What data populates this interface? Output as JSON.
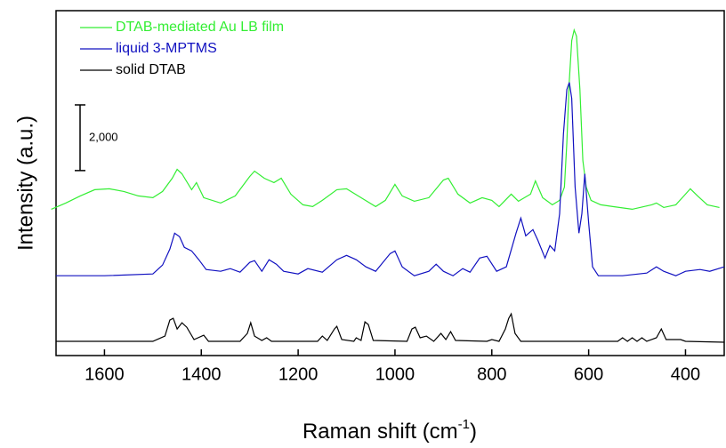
{
  "chart_data": {
    "type": "line",
    "y_label": "Intensity (a.u.)",
    "x_label_parts": [
      "Raman shift (cm",
      "-1",
      ")"
    ],
    "xlim": [
      1700,
      320
    ],
    "xticks": [
      1600,
      1400,
      1200,
      1000,
      800,
      600,
      400
    ],
    "ylim": [
      0,
      10500
    ],
    "scale_bar": {
      "value": 2000,
      "label": "2,000"
    },
    "legend": "top-left",
    "series": [
      {
        "name": "DTAB-mediated Au LB film",
        "color": "#33ee33",
        "x": [
          1710,
          1680,
          1650,
          1620,
          1590,
          1560,
          1530,
          1500,
          1480,
          1460,
          1450,
          1440,
          1420,
          1410,
          1395,
          1360,
          1330,
          1300,
          1290,
          1270,
          1250,
          1235,
          1215,
          1190,
          1170,
          1150,
          1120,
          1100,
          1070,
          1040,
          1020,
          1000,
          985,
          960,
          930,
          900,
          890,
          870,
          845,
          820,
          800,
          785,
          760,
          745,
          720,
          710,
          695,
          675,
          660,
          650,
          645,
          640,
          635,
          630,
          625,
          618,
          612,
          605,
          595,
          575,
          550,
          510,
          470,
          460,
          445,
          420,
          400,
          390,
          375,
          355,
          330
        ],
        "values": [
          4455,
          4644,
          4860,
          5049,
          5076,
          4995,
          4860,
          4806,
          4995,
          5400,
          5670,
          5535,
          5049,
          5265,
          4806,
          4644,
          4860,
          5454,
          5616,
          5400,
          5265,
          5400,
          4914,
          4590,
          4536,
          4725,
          5049,
          5076,
          4806,
          4536,
          4725,
          5211,
          4860,
          4698,
          4806,
          5346,
          5400,
          4914,
          4644,
          4806,
          4725,
          4536,
          4914,
          4698,
          4914,
          5319,
          4806,
          4590,
          4725,
          5130,
          6480,
          8370,
          9585,
          9909,
          9720,
          8100,
          5940,
          5130,
          4725,
          4590,
          4536,
          4455,
          4590,
          4644,
          4509,
          4590,
          4914,
          5076,
          4860,
          4590,
          4509
        ]
      },
      {
        "name": "liquid 3-MPTMS",
        "color": "#1010c0",
        "x": [
          1700,
          1600,
          1500,
          1480,
          1465,
          1455,
          1445,
          1435,
          1420,
          1405,
          1390,
          1360,
          1340,
          1320,
          1300,
          1290,
          1275,
          1260,
          1245,
          1230,
          1200,
          1180,
          1150,
          1120,
          1100,
          1080,
          1060,
          1040,
          1010,
          1000,
          985,
          960,
          930,
          915,
          900,
          880,
          860,
          845,
          825,
          810,
          790,
          770,
          750,
          740,
          730,
          715,
          705,
          690,
          680,
          670,
          660,
          652,
          645,
          640,
          635,
          628,
          620,
          614,
          608,
          600,
          592,
          580,
          530,
          480,
          460,
          445,
          420,
          400,
          370,
          350,
          320
        ],
        "values": [
          2430,
          2430,
          2484,
          2754,
          3240,
          3726,
          3618,
          3294,
          3186,
          2916,
          2619,
          2565,
          2646,
          2538,
          2835,
          2889,
          2565,
          2916,
          2781,
          2565,
          2484,
          2646,
          2538,
          2916,
          3051,
          2916,
          2700,
          2565,
          3105,
          3186,
          2700,
          2430,
          2565,
          2781,
          2565,
          2430,
          2646,
          2538,
          2970,
          3024,
          2565,
          2700,
          3726,
          4185,
          3645,
          3834,
          3510,
          2970,
          3348,
          3186,
          4320,
          6750,
          8100,
          8316,
          7830,
          5130,
          3726,
          4320,
          5535,
          4050,
          2700,
          2430,
          2430,
          2511,
          2700,
          2565,
          2430,
          2565,
          2619,
          2565,
          2700
        ]
      },
      {
        "name": "solid DTAB",
        "color": "#000000",
        "x": [
          1700,
          1500,
          1475,
          1465,
          1458,
          1450,
          1440,
          1430,
          1415,
          1395,
          1385,
          1320,
          1305,
          1298,
          1290,
          1275,
          1265,
          1255,
          1160,
          1150,
          1140,
          1125,
          1120,
          1110,
          1085,
          1080,
          1070,
          1062,
          1055,
          1045,
          975,
          965,
          958,
          948,
          935,
          920,
          905,
          895,
          885,
          875,
          810,
          800,
          785,
          772,
          765,
          760,
          752,
          740,
          540,
          530,
          520,
          510,
          500,
          490,
          480,
          460,
          450,
          440,
          410,
          400,
          320
        ],
        "values": [
          432,
          432,
          594,
          1080,
          1134,
          810,
          999,
          864,
          486,
          621,
          432,
          432,
          675,
          999,
          594,
          459,
          540,
          432,
          432,
          594,
          459,
          810,
          891,
          486,
          432,
          540,
          459,
          1026,
          945,
          459,
          432,
          810,
          864,
          540,
          594,
          432,
          675,
          486,
          729,
          459,
          432,
          486,
          432,
          810,
          1134,
          1269,
          675,
          432,
          432,
          540,
          432,
          540,
          432,
          540,
          432,
          540,
          810,
          486,
          486,
          432,
          405
        ]
      }
    ]
  }
}
